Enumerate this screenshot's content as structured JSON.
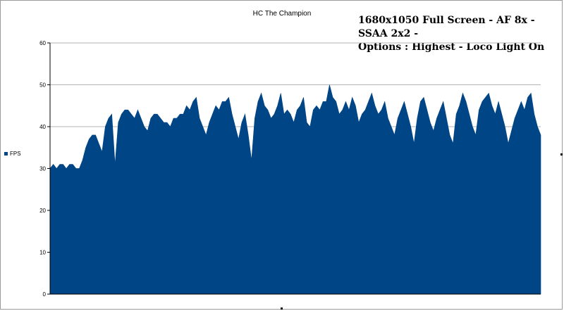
{
  "chart_data": {
    "type": "area",
    "title": "HC The Champion",
    "annotation": "1680x1050 Full Screen - AF 8x - SSAA 2x2 -\nOptions : Highest - Loco Light On",
    "xlabel": "",
    "ylabel": "",
    "ylim": [
      0,
      60
    ],
    "yticks": [
      0,
      10,
      20,
      30,
      40,
      50,
      60
    ],
    "grid": true,
    "legend_position": "left",
    "color": "#004586",
    "series": [
      {
        "name": "FPS",
        "values": [
          30,
          31,
          30,
          31,
          31,
          30,
          31,
          31,
          30,
          30,
          32,
          35,
          37,
          38,
          38,
          36,
          34,
          40,
          42,
          43,
          31,
          41,
          43,
          44,
          44,
          43,
          42,
          44,
          42,
          40,
          39,
          42,
          43,
          43,
          42,
          41,
          41,
          40,
          42,
          42,
          43,
          43,
          45,
          44,
          46,
          47,
          42,
          40,
          38,
          41,
          43,
          45,
          44,
          46,
          46,
          47,
          43,
          40,
          37,
          41,
          43,
          38,
          32,
          42,
          46,
          48,
          45,
          44,
          42,
          43,
          45,
          48,
          43,
          44,
          43,
          41,
          44,
          45,
          47,
          41,
          40,
          44,
          45,
          44,
          46,
          46,
          50,
          47,
          46,
          43,
          44,
          46,
          44,
          47,
          45,
          41,
          43,
          44,
          46,
          48,
          45,
          43,
          44,
          46,
          42,
          40,
          38,
          42,
          44,
          46,
          43,
          40,
          36,
          42,
          46,
          47,
          44,
          41,
          39,
          42,
          44,
          46,
          42,
          38,
          36,
          43,
          45,
          48,
          46,
          43,
          40,
          38,
          44,
          46,
          47,
          48,
          45,
          43,
          46,
          43,
          40,
          36,
          39,
          42,
          44,
          46,
          44,
          47,
          48,
          43,
          40,
          38
        ]
      }
    ]
  }
}
